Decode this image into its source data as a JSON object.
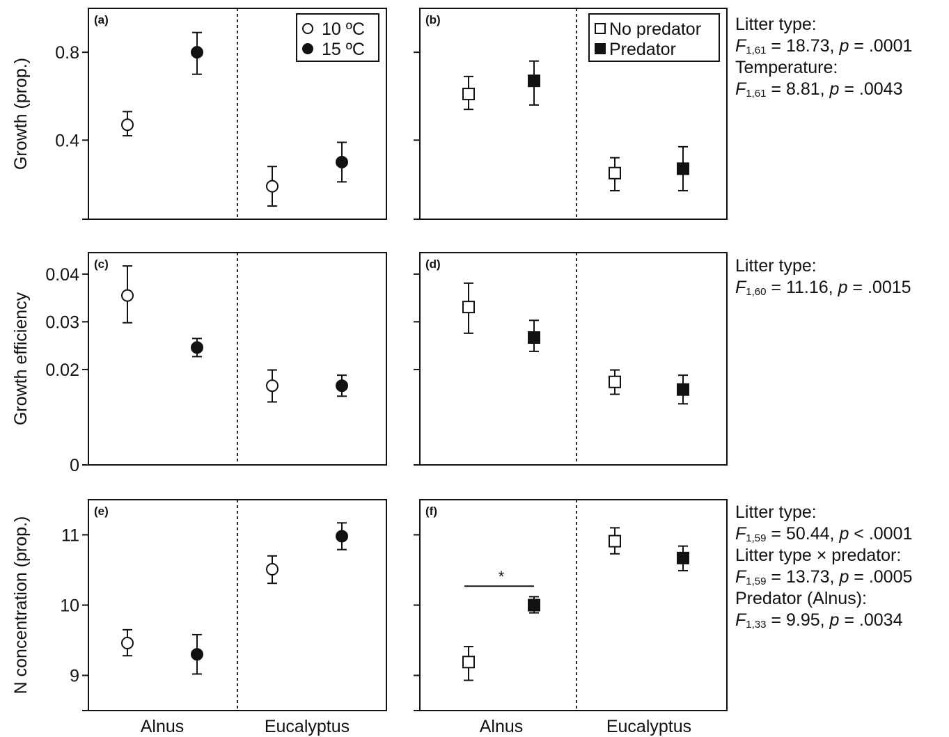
{
  "panels": [
    {
      "label": "(a)",
      "ylabel": "Growth (prop.)",
      "ylim": [
        0.04,
        1.0
      ],
      "yticks": [
        0.4,
        0.8
      ],
      "yticklabels": [
        "0.4",
        "0.8"
      ],
      "marker": "circle",
      "legend": [
        "10 ºC",
        "15 ºC"
      ]
    },
    {
      "label": "(b)",
      "ylim": [
        0.04,
        1.0
      ],
      "yticks": [
        0.4,
        0.8
      ],
      "yticklabels": [
        "",
        ""
      ],
      "marker": "square",
      "legend": [
        "No predator",
        "Predator"
      ]
    },
    {
      "label": "(c)",
      "ylabel": "Growth efficiency",
      "ylim": [
        0,
        0.0445
      ],
      "yticks": [
        0,
        0.02,
        0.03,
        0.04
      ],
      "yticklabels": [
        "0",
        "0.02",
        "0.03",
        "0.04"
      ],
      "marker": "circle"
    },
    {
      "label": "(d)",
      "ylim": [
        0,
        0.0445
      ],
      "yticks": [
        0,
        0.02,
        0.03,
        0.04
      ],
      "yticklabels": [
        "",
        "",
        "",
        ""
      ],
      "marker": "square"
    },
    {
      "label": "(e)",
      "ylabel": "N concentration (prop.)",
      "ylim": [
        8.5,
        11.5
      ],
      "yticks": [
        9,
        10,
        11
      ],
      "yticklabels": [
        "9",
        "10",
        "11"
      ],
      "marker": "circle"
    },
    {
      "label": "(f)",
      "ylim": [
        8.5,
        11.5
      ],
      "yticks": [
        9,
        10,
        11
      ],
      "yticklabels": [
        "",
        "",
        ""
      ],
      "marker": "square",
      "annotation": "*"
    }
  ],
  "chart_data": [
    {
      "type": "scatter",
      "panel": "(a)",
      "categories": [
        "Alnus",
        "Eucalyptus"
      ],
      "ylabel": "Growth (prop.)",
      "ylim": [
        0.04,
        1.0
      ],
      "series": [
        {
          "name": "10 ºC",
          "values": [
            0.47,
            0.19
          ],
          "err_low": [
            0.42,
            0.1
          ],
          "err_high": [
            0.53,
            0.28
          ]
        },
        {
          "name": "15 ºC",
          "values": [
            0.8,
            0.3
          ],
          "err_low": [
            0.7,
            0.21
          ],
          "err_high": [
            0.89,
            0.39
          ]
        }
      ]
    },
    {
      "type": "scatter",
      "panel": "(b)",
      "categories": [
        "Alnus",
        "Eucalyptus"
      ],
      "ylim": [
        0.04,
        1.0
      ],
      "series": [
        {
          "name": "No predator",
          "values": [
            0.61,
            0.25
          ],
          "err_low": [
            0.54,
            0.17
          ],
          "err_high": [
            0.69,
            0.32
          ]
        },
        {
          "name": "Predator",
          "values": [
            0.67,
            0.27
          ],
          "err_low": [
            0.56,
            0.17
          ],
          "err_high": [
            0.76,
            0.37
          ]
        }
      ]
    },
    {
      "type": "scatter",
      "panel": "(c)",
      "categories": [
        "Alnus",
        "Eucalyptus"
      ],
      "ylabel": "Growth efficiency",
      "ylim": [
        0,
        0.0445
      ],
      "series": [
        {
          "name": "10 ºC",
          "values": [
            0.0355,
            0.0166
          ],
          "err_low": [
            0.0298,
            0.0132
          ],
          "err_high": [
            0.0417,
            0.0199
          ]
        },
        {
          "name": "15 ºC",
          "values": [
            0.0246,
            0.0166
          ],
          "err_low": [
            0.0227,
            0.0144
          ],
          "err_high": [
            0.0265,
            0.0188
          ]
        }
      ]
    },
    {
      "type": "scatter",
      "panel": "(d)",
      "categories": [
        "Alnus",
        "Eucalyptus"
      ],
      "ylim": [
        0,
        0.0445
      ],
      "series": [
        {
          "name": "No predator",
          "values": [
            0.0331,
            0.0174
          ],
          "err_low": [
            0.0276,
            0.0148
          ],
          "err_high": [
            0.0381,
            0.0199
          ]
        },
        {
          "name": "Predator",
          "values": [
            0.0267,
            0.0158
          ],
          "err_low": [
            0.0238,
            0.0128
          ],
          "err_high": [
            0.0303,
            0.0188
          ]
        }
      ]
    },
    {
      "type": "scatter",
      "panel": "(e)",
      "categories": [
        "Alnus",
        "Eucalyptus"
      ],
      "ylabel": "N concentration (prop.)",
      "ylim": [
        8.5,
        11.5
      ],
      "series": [
        {
          "name": "10 ºC",
          "values": [
            9.46,
            10.51
          ],
          "err_low": [
            9.28,
            10.31
          ],
          "err_high": [
            9.65,
            10.7
          ]
        },
        {
          "name": "15 ºC",
          "values": [
            9.3,
            10.98
          ],
          "err_low": [
            9.02,
            10.79
          ],
          "err_high": [
            9.58,
            11.17
          ]
        }
      ]
    },
    {
      "type": "scatter",
      "panel": "(f)",
      "categories": [
        "Alnus",
        "Eucalyptus"
      ],
      "ylim": [
        8.5,
        11.5
      ],
      "series": [
        {
          "name": "No predator",
          "values": [
            9.19,
            10.91
          ],
          "err_low": [
            8.93,
            10.73
          ],
          "err_high": [
            9.41,
            11.1
          ]
        },
        {
          "name": "Predator",
          "values": [
            10.0,
            10.67
          ],
          "err_low": [
            9.89,
            10.49
          ],
          "err_high": [
            10.12,
            10.84
          ]
        }
      ]
    }
  ],
  "xlabels": [
    "Alnus",
    "Eucalyptus",
    "Alnus",
    "Eucalyptus"
  ],
  "stats": {
    "row1": {
      "l1": "Litter type:",
      "l2_f": "F",
      "l2_sub": "1,61",
      "l2_mid": " = 18.73, ",
      "l2_p": "p",
      "l2_end": " = .0001",
      "l3": "Temperature:",
      "l4_f": "F",
      "l4_sub": "1,61",
      "l4_mid": " = 8.81, ",
      "l4_p": "p",
      "l4_end": " = .0043"
    },
    "row2": {
      "l1": "Litter type:",
      "l2_f": "F",
      "l2_sub": "1,60",
      "l2_mid": " = 11.16, ",
      "l2_p": "p",
      "l2_end": " = .0015"
    },
    "row3": {
      "l1": "Litter type:",
      "l2_f": "F",
      "l2_sub": "1,59",
      "l2_mid": " = 50.44, ",
      "l2_p": "p",
      "l2_end": " < .0001",
      "l3": "Litter type × predator:",
      "l4_f": "F",
      "l4_sub": "1,59",
      "l4_mid": " = 13.73, ",
      "l4_p": "p",
      "l4_end": " = .0005",
      "l5": "Predator (Alnus):",
      "l6_f": "F",
      "l6_sub": "1,33",
      "l6_mid": " = 9.95, ",
      "l6_p": "p",
      "l6_end": " = .0034"
    }
  }
}
